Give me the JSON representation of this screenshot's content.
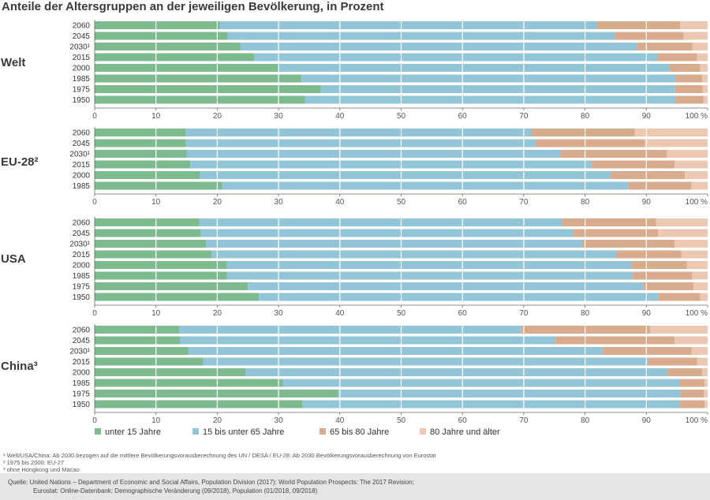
{
  "title": "Anteile der Altersgruppen an der jeweiligen Bevölkerung, in Prozent",
  "chart_data": {
    "type": "bar",
    "orientation": "horizontal",
    "stacked": true,
    "x_ticks": [
      "0",
      "10",
      "20",
      "30",
      "40",
      "50",
      "60",
      "70",
      "80",
      "90",
      "100 %"
    ],
    "xlim": [
      0,
      100
    ],
    "series_names": [
      "unter 15 Jahre",
      "15 bis unter 65 Jahre",
      "65 bis 80 Jahre",
      "80 Jahre und älter"
    ],
    "colors": [
      "#7dbb8e",
      "#93c5d8",
      "#d8ab8c",
      "#ecc8b2"
    ],
    "panels": [
      {
        "region": "Welt",
        "rows": [
          {
            "year": "2060",
            "values": [
              20.5,
              61.5,
              13.5,
              4.5
            ]
          },
          {
            "year": "2045",
            "values": [
              21.7,
              63.2,
              11.2,
              3.9
            ]
          },
          {
            "year": "2030¹",
            "values": [
              23.8,
              64.7,
              9.0,
              2.5
            ]
          },
          {
            "year": "2015",
            "values": [
              26.0,
              65.9,
              6.4,
              1.7
            ]
          },
          {
            "year": "2000",
            "values": [
              30.0,
              63.8,
              5.0,
              1.2
            ]
          },
          {
            "year": "1985",
            "values": [
              33.7,
              61.1,
              4.3,
              0.9
            ]
          },
          {
            "year": "1975",
            "values": [
              36.9,
              57.8,
              4.5,
              0.8
            ]
          },
          {
            "year": "1950",
            "values": [
              34.3,
              60.5,
              4.5,
              0.7
            ]
          }
        ]
      },
      {
        "region": "EU-28²",
        "rows": [
          {
            "year": "2060",
            "values": [
              14.9,
              56.4,
              16.8,
              11.9
            ]
          },
          {
            "year": "2045",
            "values": [
              14.9,
              57.1,
              17.8,
              10.2
            ]
          },
          {
            "year": "2030¹",
            "values": [
              15.0,
              61.0,
              17.3,
              6.7
            ]
          },
          {
            "year": "2015",
            "values": [
              15.6,
              65.5,
              13.5,
              5.4
            ]
          },
          {
            "year": "2000",
            "values": [
              17.2,
              67.0,
              12.1,
              3.7
            ]
          },
          {
            "year": "1985",
            "values": [
              20.8,
              66.3,
              10.2,
              2.7
            ]
          }
        ]
      },
      {
        "region": "USA",
        "rows": [
          {
            "year": "2060",
            "values": [
              17.1,
              59.2,
              15.3,
              8.4
            ]
          },
          {
            "year": "2045",
            "values": [
              17.3,
              60.8,
              13.8,
              8.1
            ]
          },
          {
            "year": "2030¹",
            "values": [
              18.2,
              61.4,
              15.0,
              5.4
            ]
          },
          {
            "year": "2015",
            "values": [
              19.1,
              66.1,
              10.5,
              4.3
            ]
          },
          {
            "year": "2000",
            "values": [
              21.6,
              66.0,
              9.0,
              3.4
            ]
          },
          {
            "year": "1985",
            "values": [
              21.6,
              66.2,
              9.7,
              2.5
            ]
          },
          {
            "year": "1975",
            "values": [
              25.0,
              64.5,
              8.2,
              2.3
            ]
          },
          {
            "year": "1950",
            "values": [
              26.8,
              65.2,
              6.8,
              1.2
            ]
          }
        ]
      },
      {
        "region": "China³",
        "rows": [
          {
            "year": "2060",
            "values": [
              13.8,
              55.8,
              21.0,
              9.4
            ]
          },
          {
            "year": "2045",
            "values": [
              13.9,
              61.3,
              19.4,
              5.4
            ]
          },
          {
            "year": "2030¹",
            "values": [
              15.3,
              67.6,
              14.5,
              2.6
            ]
          },
          {
            "year": "2015",
            "values": [
              17.7,
              72.6,
              8.0,
              1.7
            ]
          },
          {
            "year": "2000",
            "values": [
              24.6,
              68.9,
              5.6,
              0.9
            ]
          },
          {
            "year": "1985",
            "values": [
              30.7,
              64.8,
              4.0,
              0.5
            ]
          },
          {
            "year": "1975",
            "values": [
              39.7,
              55.9,
              3.8,
              0.6
            ]
          },
          {
            "year": "1950",
            "values": [
              33.9,
              61.6,
              4.0,
              0.5
            ]
          }
        ]
      }
    ]
  },
  "footnotes": [
    "¹ Welt/USA/China: Ab 2030 bezogen auf die mittlere Bevölkerungsvorausberechnung des UN / DESA / EU-28: Ab 2030 Bevölkerungsvorausberechnung von Eurostat",
    "² 1975 bis 2000: EU-27",
    "³ ohne Hongkong und Macao"
  ],
  "source": [
    "Quelle: United Nations – Department of Economic and Social Affairs, Population Division (2017): World Population Prospects: The 2017 Revision;",
    "Eurostat: Online-Datenbank: Demographische Veränderung (09/2018), Population (01/2018, 09/2018)"
  ]
}
